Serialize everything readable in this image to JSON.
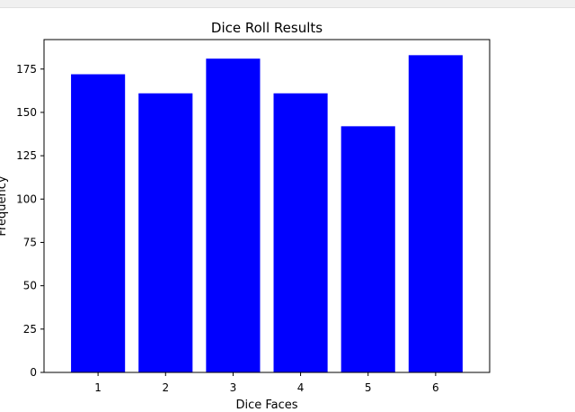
{
  "chart_data": {
    "type": "bar",
    "title": "Dice Roll Results",
    "xlabel": "Dice Faces",
    "ylabel": "Frequency",
    "categories": [
      "1",
      "2",
      "3",
      "4",
      "5",
      "6"
    ],
    "values": [
      172,
      161,
      181,
      161,
      142,
      183
    ],
    "yticks": [
      "0",
      "25",
      "50",
      "75",
      "100",
      "125",
      "150",
      "175"
    ],
    "ylim": [
      0,
      192
    ],
    "bar_color": "#0000ff",
    "grid": false,
    "legend": "none"
  }
}
